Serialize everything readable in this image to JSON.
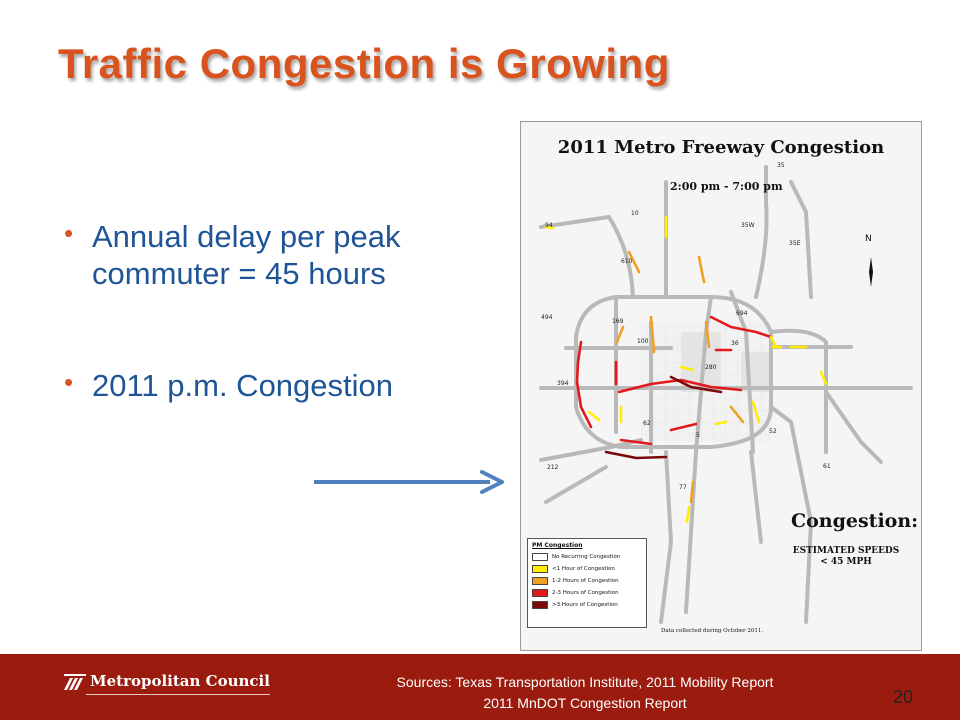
{
  "slide": {
    "title": "Traffic Congestion is Growing",
    "bullets": [
      "Annual delay per peak commuter = 45 hours",
      "2011 p.m. Congestion"
    ],
    "arrow_icon": "arrow-right-icon",
    "accent_color": "#d9531e",
    "text_color": "#1f5596"
  },
  "map": {
    "title": "2011 Metro Freeway Congestion",
    "time_range": "2:00 pm - 7:00 pm",
    "north_label": "N",
    "highway_labels": [
      "35",
      "10",
      "35W",
      "94",
      "610",
      "35E",
      "694",
      "494",
      "169",
      "100",
      "36",
      "280",
      "394",
      "62",
      "5",
      "52",
      "212",
      "77",
      "61"
    ],
    "callout_title": "Congestion:",
    "callout_subtitle": "ESTIMATED SPEEDS",
    "callout_subtitle_2": "< 45 MPH",
    "legend": {
      "title": "PM Congestion",
      "items": [
        {
          "label": "No Recurring Congestion",
          "color": "#ffffff"
        },
        {
          "label": "<1 Hour of Congestion",
          "color": "#ffee00"
        },
        {
          "label": "1-2 Hours of Congestion",
          "color": "#f0a020"
        },
        {
          "label": "2-3 Hours of Congestion",
          "color": "#e31a1c"
        },
        {
          "label": ">3 Hours of Congestion",
          "color": "#7a0a0a"
        }
      ]
    },
    "note": "Data collected during October 2011."
  },
  "footer": {
    "logo_text": "Metropolitan Council",
    "sources_line1": "Sources: Texas Transportation Institute, 2011 Mobility Report",
    "sources_line2": "2011 MnDOT Congestion Report",
    "page_number": "20",
    "background_color": "#9b1c0e"
  }
}
